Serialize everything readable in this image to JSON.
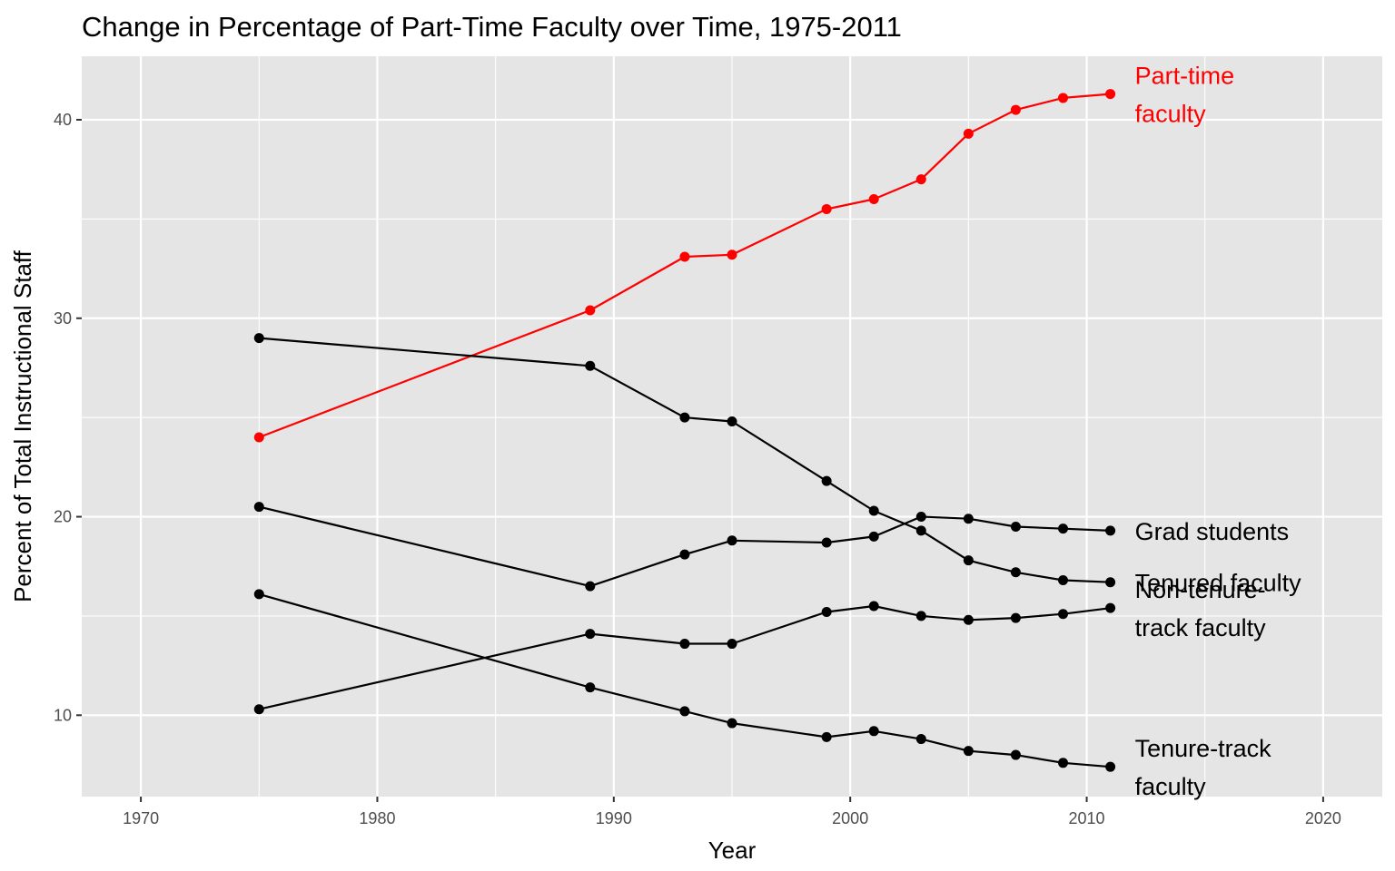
{
  "chart_data": {
    "type": "line",
    "title": "Change in Percentage of Part-Time Faculty over Time, 1975-2011",
    "xlabel": "Year",
    "ylabel": "Percent of Total Instructional Staff",
    "xlim": [
      1967.5,
      2022.5
    ],
    "ylim": [
      5.9,
      43.2
    ],
    "x_ticks": [
      1970,
      1980,
      1990,
      2000,
      2010,
      2020
    ],
    "y_ticks": [
      10,
      20,
      30,
      40
    ],
    "grid": true,
    "legend": "direct labels at line ends (right)",
    "x": [
      1975,
      1989,
      1993,
      1995,
      1999,
      2001,
      2003,
      2005,
      2007,
      2009,
      2011
    ],
    "series": [
      {
        "id": "part-time",
        "name": "Part-time faculty",
        "label_lines": [
          "Part-time",
          "faculty"
        ],
        "color": "#ff0000",
        "values": [
          24.0,
          30.4,
          33.1,
          33.2,
          35.5,
          36.0,
          37.0,
          39.3,
          40.5,
          41.1,
          41.3
        ]
      },
      {
        "id": "grad-students",
        "name": "Grad students",
        "label_lines": [
          "Grad students"
        ],
        "color": "#000000",
        "values": [
          20.5,
          16.5,
          18.1,
          18.8,
          18.7,
          19.0,
          20.0,
          19.9,
          19.5,
          19.4,
          19.3
        ]
      },
      {
        "id": "tenured",
        "name": "Tenured faculty",
        "label_lines": [
          "Tenured faculty"
        ],
        "color": "#000000",
        "values": [
          29.0,
          27.6,
          25.0,
          24.8,
          21.8,
          20.3,
          19.3,
          17.8,
          17.2,
          16.8,
          16.7
        ]
      },
      {
        "id": "non-tenure-track",
        "name": "Non-tenure-track faculty",
        "label_lines": [
          "Non-tenure-",
          "track faculty"
        ],
        "color": "#000000",
        "values": [
          10.3,
          14.1,
          13.6,
          13.6,
          15.2,
          15.5,
          15.0,
          14.8,
          14.9,
          15.1,
          15.4
        ]
      },
      {
        "id": "tenure-track",
        "name": "Tenure-track faculty",
        "label_lines": [
          "Tenure-track",
          "faculty"
        ],
        "color": "#000000",
        "values": [
          16.1,
          11.4,
          10.2,
          9.6,
          8.9,
          9.2,
          8.8,
          8.2,
          8.0,
          7.6,
          7.4
        ]
      }
    ]
  }
}
